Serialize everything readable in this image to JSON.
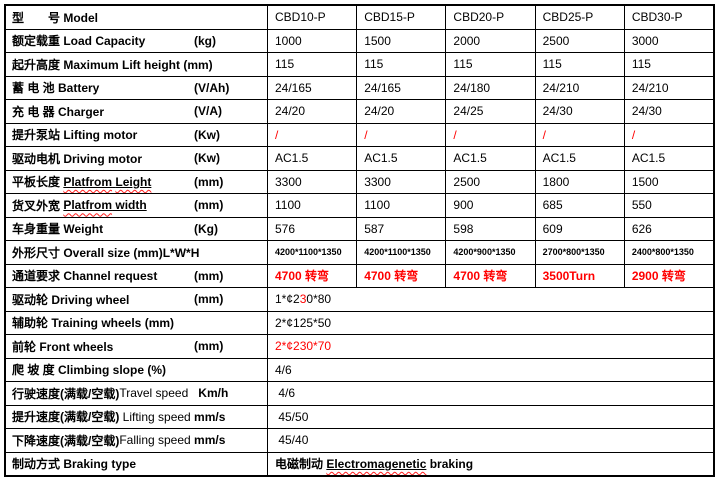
{
  "page": {
    "background": "#ffffff",
    "border_color": "#000000",
    "accent_red": "#ff0000"
  },
  "table": {
    "rows": [
      {
        "id": "model",
        "label": [
          {
            "t": "型　　号 Model",
            "s": "b"
          }
        ],
        "unit": "",
        "values": [
          "CBD10-P",
          "CBD15-P",
          "CBD20-P",
          "CBD25-P",
          "CBD30-P"
        ],
        "vstyle": ""
      },
      {
        "id": "load-capacity",
        "label": [
          {
            "t": "额定载重 Load Capacity",
            "s": "b"
          }
        ],
        "unit": "(kg)",
        "values": [
          "1000",
          "1500",
          "2000",
          "2500",
          "3000"
        ],
        "vstyle": ""
      },
      {
        "id": "lift-height",
        "label": [
          {
            "t": "起升高度 Maximum Lift height (mm)",
            "s": "b"
          }
        ],
        "unit": "",
        "values": [
          "115",
          "115",
          "115",
          "115",
          "115"
        ],
        "vstyle": ""
      },
      {
        "id": "battery",
        "label": [
          {
            "t": "蓄 电 池 Battery",
            "s": "b"
          }
        ],
        "unit": "(V/Ah)",
        "values": [
          "24/165",
          "24/165",
          "24/180",
          "24/210",
          "24/210"
        ],
        "vstyle": ""
      },
      {
        "id": "charger",
        "label": [
          {
            "t": "充 电 器 Charger",
            "s": "b"
          }
        ],
        "unit": "(V/A)",
        "values": [
          "24/20",
          "24/20",
          "24/25",
          "24/30",
          "24/30"
        ],
        "vstyle": ""
      },
      {
        "id": "lifting-motor",
        "label": [
          {
            "t": "提升泵站 Lifting motor",
            "s": "b"
          }
        ],
        "unit": "(Kw)",
        "values": [
          "/",
          "/",
          "/",
          "/",
          "/"
        ],
        "vstyle": "red"
      },
      {
        "id": "driving-motor",
        "label": [
          {
            "t": "驱动电机 Driving motor",
            "s": "b"
          }
        ],
        "unit": "(Kw)",
        "values": [
          "AC1.5",
          "AC1.5",
          "AC1.5",
          "AC1.5",
          "AC1.5"
        ],
        "vstyle": ""
      },
      {
        "id": "platform-length",
        "label": [
          {
            "t": "平板长度 ",
            "s": "b"
          },
          {
            "t": "Platfrom",
            "s": "b u wavy"
          },
          {
            "t": " ",
            "s": "b u"
          },
          {
            "t": "Leight",
            "s": "b u wavy"
          }
        ],
        "unit": "(mm)",
        "values": [
          "3300",
          "3300",
          "2500",
          "1800",
          "1500"
        ],
        "vstyle": ""
      },
      {
        "id": "platform-width",
        "label": [
          {
            "t": "货叉外宽 ",
            "s": "b"
          },
          {
            "t": "Platfrom",
            "s": "b u wavy"
          },
          {
            "t": " width",
            "s": "b u"
          }
        ],
        "unit": "(mm)",
        "values": [
          "1100",
          "1100",
          "900",
          "685",
          "550"
        ],
        "vstyle": ""
      },
      {
        "id": "weight",
        "label": [
          {
            "t": "车身重量 Weight",
            "s": "b"
          }
        ],
        "unit": "(Kg)",
        "values": [
          "576",
          "587",
          "598",
          "609",
          "626"
        ],
        "vstyle": ""
      },
      {
        "id": "overall-size",
        "label": [
          {
            "t": "外形尺寸 Overall size (mm)L*W*H",
            "s": "b"
          }
        ],
        "unit": "",
        "values": [
          "4200*1100*1350",
          "4200*1100*1350",
          "4200*900*1350",
          "2700*800*1350",
          "2400*800*1350"
        ],
        "vstyle": "small"
      },
      {
        "id": "channel-request",
        "label": [
          {
            "t": "通道要求 Channel request",
            "s": "b"
          }
        ],
        "unit": "(mm)",
        "values": [
          "4700 转弯",
          "4700 转弯",
          "4700 转弯",
          "3500Turn",
          "2900 转弯"
        ],
        "vstyle": "red b"
      },
      {
        "id": "driving-wheel",
        "label": [
          {
            "t": "驱动轮 Driving wheel",
            "s": "b"
          }
        ],
        "unit": "(mm)",
        "value": [
          {
            "t": "1*¢2",
            "s": ""
          },
          {
            "t": "3",
            "s": "red"
          },
          {
            "t": "0*80",
            "s": ""
          }
        ]
      },
      {
        "id": "training-wheels",
        "label": [
          {
            "t": "辅助轮 Training wheels (mm)",
            "s": "b"
          }
        ],
        "unit": "",
        "value": [
          {
            "t": "2*¢125*50",
            "s": ""
          }
        ]
      },
      {
        "id": "front-wheels",
        "label": [
          {
            "t": "前轮 Front wheels",
            "s": "b"
          }
        ],
        "unit": "(mm)",
        "value": [
          {
            "t": "2*¢230*70",
            "s": "red"
          }
        ]
      },
      {
        "id": "climbing-slope",
        "label": [
          {
            "t": "爬 坡 度 Climbing slope (%)",
            "s": "b"
          }
        ],
        "unit": "",
        "value": [
          {
            "t": "4/6",
            "s": ""
          }
        ]
      },
      {
        "id": "travel-speed",
        "label": [
          {
            "t": "行驶速度(满载/空载)",
            "s": "b"
          },
          {
            "t": "Travel speed",
            "s": ""
          },
          {
            "t": "   ",
            "s": ""
          },
          {
            "t": "Km/h",
            "s": "b"
          }
        ],
        "unit": "",
        "value": [
          {
            "t": " 4/6",
            "s": ""
          }
        ]
      },
      {
        "id": "lifting-speed",
        "label": [
          {
            "t": "提升速度(满载/空载)",
            "s": "b"
          },
          {
            "t": " Lifting speed ",
            "s": ""
          },
          {
            "t": "mm/s",
            "s": "b"
          }
        ],
        "unit": "",
        "value": [
          {
            "t": " 45/50",
            "s": ""
          }
        ]
      },
      {
        "id": "falling-speed",
        "label": [
          {
            "t": "下降速度(满载/空载)",
            "s": "b"
          },
          {
            "t": "Falling speed ",
            "s": ""
          },
          {
            "t": "mm/s",
            "s": "b"
          }
        ],
        "unit": "",
        "value": [
          {
            "t": " 45/40",
            "s": ""
          }
        ]
      },
      {
        "id": "braking-type",
        "label": [
          {
            "t": "制动方式 Braking type",
            "s": "b"
          }
        ],
        "unit": "",
        "value": [
          {
            "t": "电磁制动 ",
            "s": "b"
          },
          {
            "t": "Electromagenetic",
            "s": "b u wavy"
          },
          {
            "t": " braking",
            "s": "b"
          }
        ]
      }
    ]
  }
}
